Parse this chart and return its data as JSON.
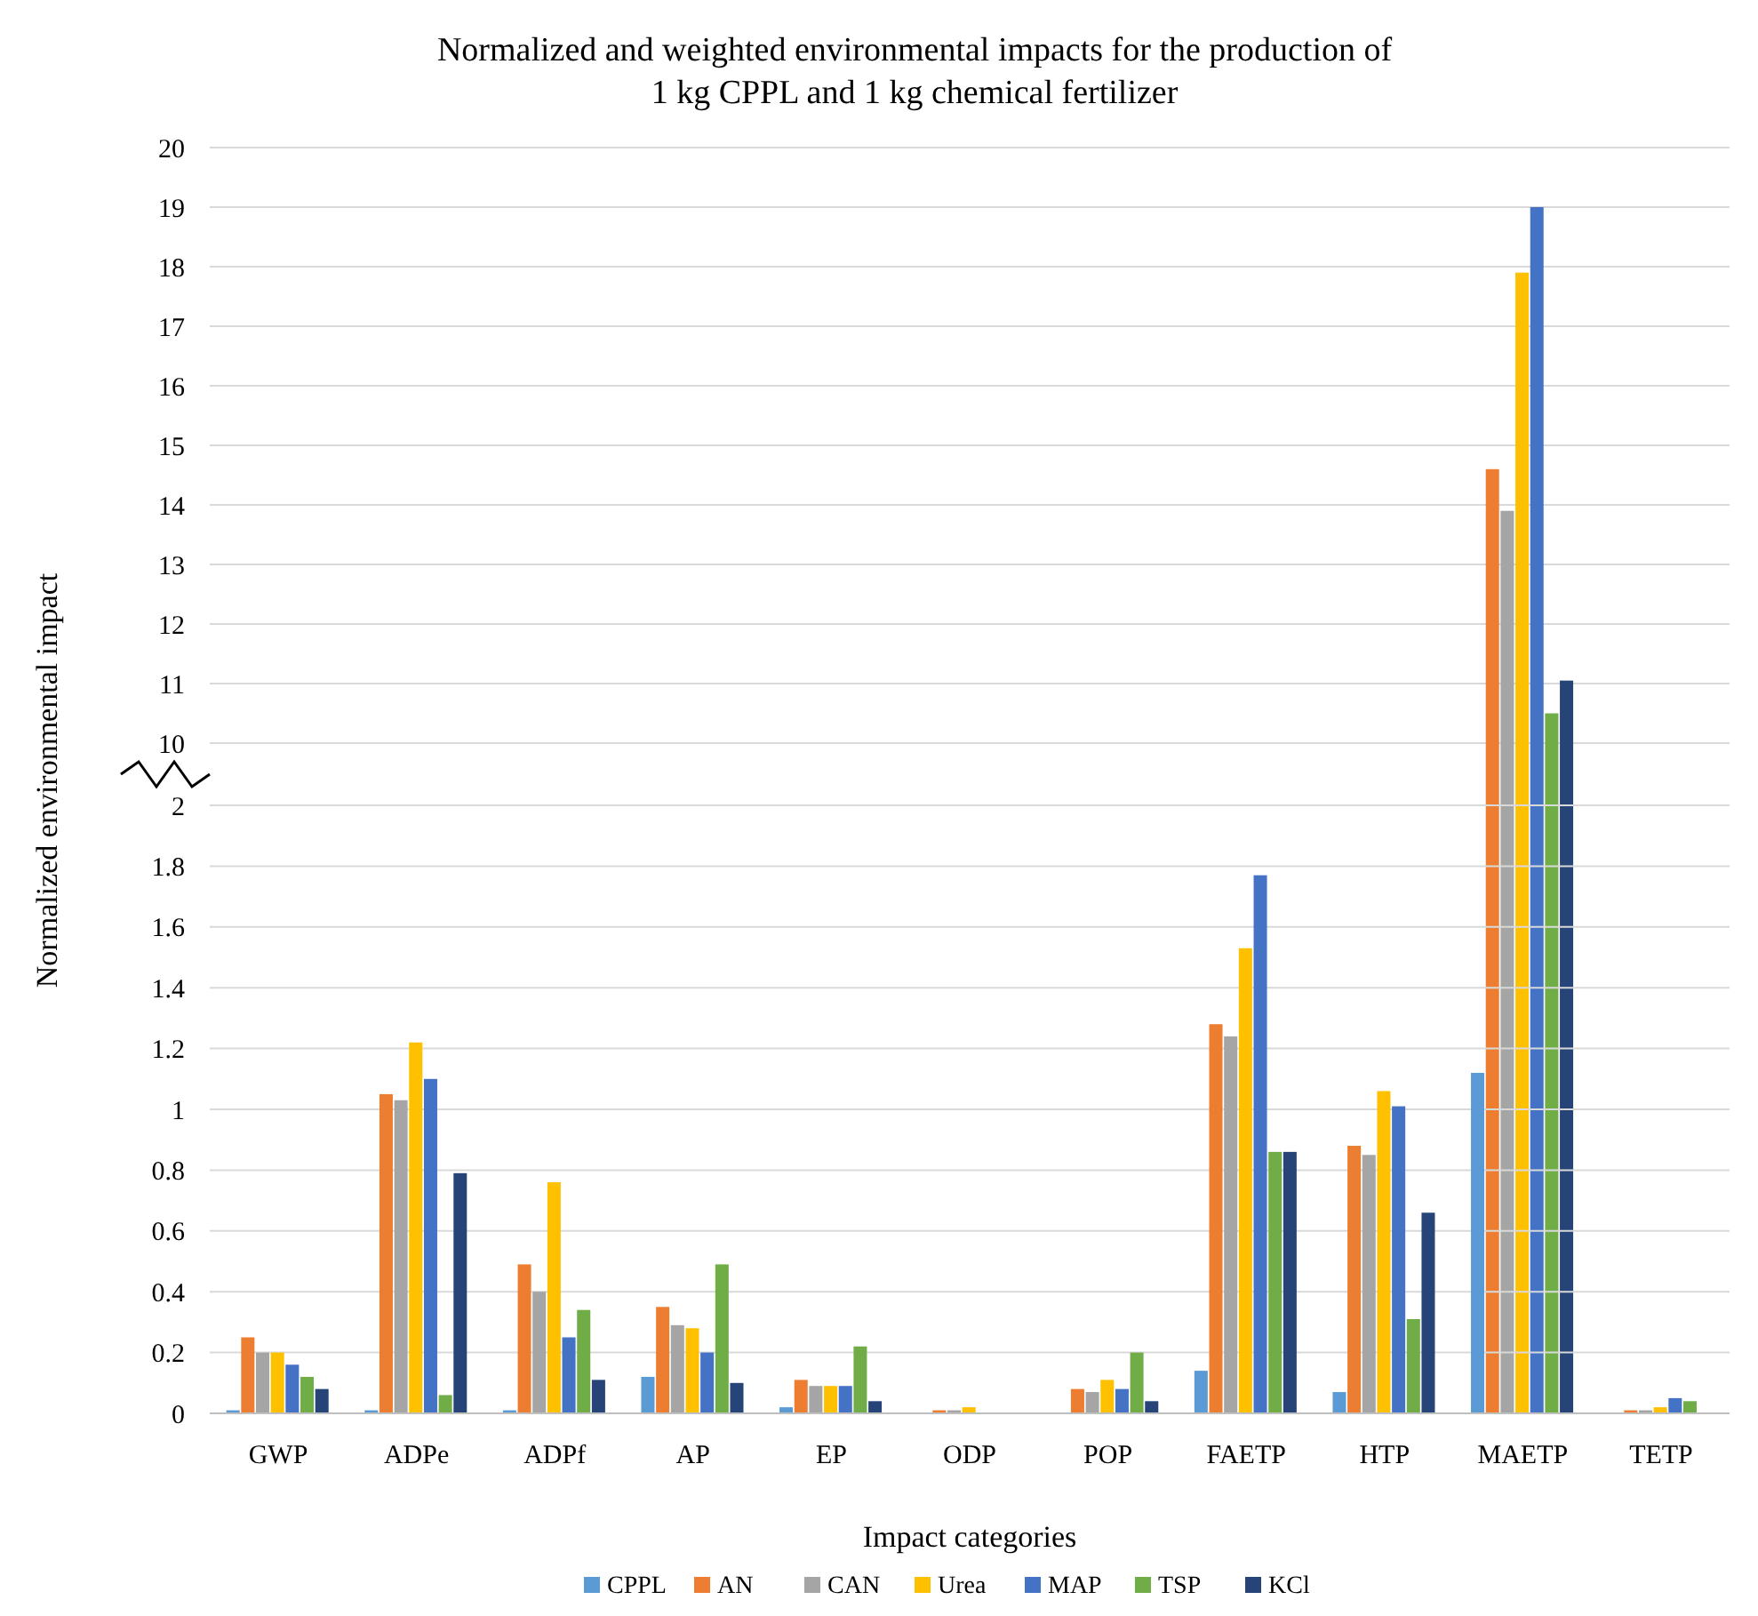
{
  "chart_data": [
    {
      "type": "bar",
      "title": "Normalized and weighted environmental impacts for the production of 1 kg CPPL and 1 kg chemical fertilizer",
      "ylim": [
        10,
        20
      ],
      "yticks": [
        10,
        11,
        12,
        13,
        14,
        15,
        16,
        17,
        18,
        19,
        20
      ],
      "grid": "y",
      "tick_labels": "y",
      "series": [
        {
          "values": [
            null,
            null,
            null,
            null,
            null,
            null,
            null,
            null,
            null,
            null,
            null
          ]
        },
        {
          "color": "#ed7d31",
          "values": [
            null,
            null,
            null,
            null,
            null,
            null,
            null,
            null,
            null,
            14.6,
            null
          ]
        },
        {
          "color": "#a5a5a5",
          "values": [
            null,
            null,
            null,
            null,
            null,
            null,
            null,
            null,
            null,
            13.9,
            null
          ]
        },
        {
          "color": "#ffc000",
          "values": [
            null,
            null,
            null,
            null,
            null,
            null,
            null,
            null,
            null,
            17.9,
            null
          ]
        },
        {
          "color": "#4472c4",
          "values": [
            null,
            null,
            null,
            null,
            null,
            null,
            null,
            null,
            null,
            19.0,
            null
          ]
        },
        {
          "color": "#70ad47",
          "values": [
            null,
            null,
            null,
            null,
            null,
            null,
            null,
            null,
            null,
            10.5,
            null
          ]
        },
        {
          "color": "#264478",
          "values": [
            null,
            null,
            null,
            null,
            null,
            null,
            null,
            null,
            null,
            11.05,
            null
          ]
        }
      ]
    },
    {
      "type": "bar",
      "xlabel": "Impact categories",
      "ylabel": "Normalized environmental impact",
      "categories": [
        "GWP",
        "ADPe",
        "ADPf",
        "AP",
        "EP",
        "ODP",
        "POP",
        "FAETP",
        "HTP",
        "MAETP",
        "TETP"
      ],
      "ylim": [
        0,
        2
      ],
      "yticks": [
        0,
        0.2,
        0.4,
        0.6,
        0.8,
        1,
        1.2,
        1.4,
        1.6,
        1.8,
        2
      ],
      "grid": "y",
      "legend": "bottom",
      "series": [
        {
          "name": "CPPL",
          "color": "#5b9bd5",
          "values": [
            0.01,
            0.01,
            0.01,
            0.12,
            0.02,
            0,
            0,
            0.14,
            0.07,
            1.12,
            0
          ]
        },
        {
          "name": "AN",
          "color": "#ed7d31",
          "values": [
            0.25,
            1.05,
            0.49,
            0.35,
            0.11,
            0.01,
            0.08,
            1.28,
            0.88,
            null,
            0.01
          ]
        },
        {
          "name": "CAN",
          "color": "#a5a5a5",
          "values": [
            0.2,
            1.03,
            0.4,
            0.29,
            0.09,
            0.01,
            0.07,
            1.24,
            0.85,
            null,
            0.01
          ]
        },
        {
          "name": "Urea",
          "color": "#ffc000",
          "values": [
            0.2,
            1.22,
            0.76,
            0.28,
            0.09,
            0.02,
            0.11,
            1.53,
            1.06,
            null,
            0.02
          ]
        },
        {
          "name": "MAP",
          "color": "#4472c4",
          "values": [
            0.16,
            1.1,
            0.25,
            0.2,
            0.09,
            0,
            0.08,
            1.77,
            1.01,
            null,
            0.05
          ]
        },
        {
          "name": "TSP",
          "color": "#70ad47",
          "values": [
            0.12,
            0.06,
            0.34,
            0.49,
            0.22,
            0,
            0.2,
            0.86,
            0.31,
            null,
            0.04
          ]
        },
        {
          "name": "KCl",
          "color": "#264478",
          "values": [
            0.08,
            0.79,
            0.11,
            0.1,
            0.04,
            0,
            0.04,
            0.86,
            0.66,
            null,
            0
          ]
        }
      ]
    }
  ]
}
